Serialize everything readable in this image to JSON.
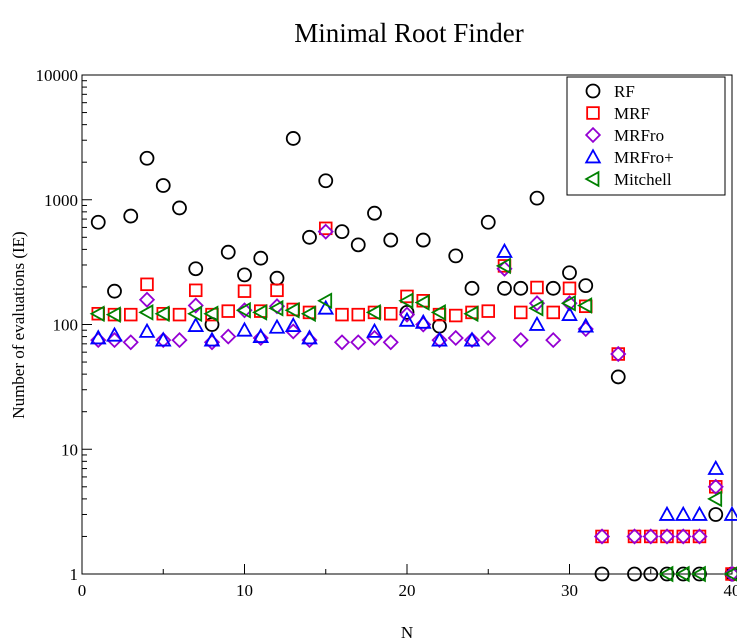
{
  "chart_data": {
    "type": "scatter",
    "title": "Minimal Root Finder",
    "xlabel": "N",
    "ylabel": "Number of evaluations (IE)",
    "xlim": [
      0,
      40
    ],
    "ylim": [
      1,
      10000
    ],
    "yscale": "log",
    "x_ticks": [
      0,
      10,
      20,
      30,
      40
    ],
    "x_tick_labels": [
      "0",
      "10",
      "20",
      "30",
      "40"
    ],
    "y_ticks": [
      1,
      10,
      100,
      1000,
      10000
    ],
    "y_tick_labels": [
      "1",
      "10",
      "100",
      "1000",
      "10000"
    ],
    "grid": false,
    "legend_position": "top-right",
    "series": [
      {
        "name": "RF",
        "marker": "circle",
        "color": "#000000",
        "points": [
          [
            1,
            660
          ],
          [
            2,
            185
          ],
          [
            3,
            740
          ],
          [
            4,
            2150
          ],
          [
            5,
            1300
          ],
          [
            6,
            860
          ],
          [
            7,
            280
          ],
          [
            8,
            100
          ],
          [
            9,
            380
          ],
          [
            10,
            250
          ],
          [
            11,
            340
          ],
          [
            12,
            235
          ],
          [
            13,
            3100
          ],
          [
            14,
            500
          ],
          [
            15,
            1420
          ],
          [
            16,
            555
          ],
          [
            17,
            435
          ],
          [
            18,
            780
          ],
          [
            19,
            475
          ],
          [
            20,
            125
          ],
          [
            21,
            475
          ],
          [
            22,
            97
          ],
          [
            23,
            355
          ],
          [
            24,
            195
          ],
          [
            25,
            660
          ],
          [
            26,
            195
          ],
          [
            27,
            195
          ],
          [
            28,
            1030
          ],
          [
            29,
            195
          ],
          [
            30,
            260
          ],
          [
            31,
            205
          ],
          [
            33,
            38
          ],
          [
            32,
            1
          ],
          [
            34,
            1
          ],
          [
            35,
            1
          ],
          [
            36,
            1
          ],
          [
            37,
            1
          ],
          [
            38,
            1
          ],
          [
            39,
            3
          ],
          [
            40,
            1
          ]
        ]
      },
      {
        "name": "MRF",
        "marker": "square",
        "color": "#ff0000",
        "points": [
          [
            1,
            122
          ],
          [
            2,
            120
          ],
          [
            3,
            120
          ],
          [
            4,
            210
          ],
          [
            5,
            122
          ],
          [
            6,
            120
          ],
          [
            7,
            188
          ],
          [
            8,
            120
          ],
          [
            9,
            128
          ],
          [
            10,
            185
          ],
          [
            11,
            128
          ],
          [
            12,
            188
          ],
          [
            13,
            132
          ],
          [
            14,
            125
          ],
          [
            15,
            590
          ],
          [
            16,
            120
          ],
          [
            17,
            120
          ],
          [
            18,
            125
          ],
          [
            19,
            122
          ],
          [
            20,
            168
          ],
          [
            21,
            155
          ],
          [
            22,
            120
          ],
          [
            23,
            118
          ],
          [
            24,
            125
          ],
          [
            25,
            128
          ],
          [
            26,
            295
          ],
          [
            27,
            125
          ],
          [
            28,
            198
          ],
          [
            29,
            125
          ],
          [
            30,
            195
          ],
          [
            31,
            140
          ],
          [
            32,
            2
          ],
          [
            33,
            58
          ],
          [
            34,
            2
          ],
          [
            35,
            2
          ],
          [
            36,
            2
          ],
          [
            37,
            2
          ],
          [
            38,
            2
          ],
          [
            39,
            5
          ],
          [
            40,
            1
          ]
        ]
      },
      {
        "name": "MRFro",
        "marker": "diamond",
        "color": "#9400d3",
        "points": [
          [
            1,
            75
          ],
          [
            2,
            75
          ],
          [
            3,
            72
          ],
          [
            4,
            158
          ],
          [
            5,
            75
          ],
          [
            6,
            75
          ],
          [
            7,
            142
          ],
          [
            8,
            72
          ],
          [
            9,
            80
          ],
          [
            10,
            130
          ],
          [
            11,
            78
          ],
          [
            12,
            140
          ],
          [
            13,
            88
          ],
          [
            14,
            75
          ],
          [
            15,
            555
          ],
          [
            16,
            72
          ],
          [
            17,
            72
          ],
          [
            18,
            78
          ],
          [
            19,
            72
          ],
          [
            20,
            120
          ],
          [
            21,
            100
          ],
          [
            22,
            75
          ],
          [
            23,
            78
          ],
          [
            24,
            75
          ],
          [
            25,
            78
          ],
          [
            26,
            280
          ],
          [
            27,
            75
          ],
          [
            28,
            148
          ],
          [
            29,
            75
          ],
          [
            30,
            148
          ],
          [
            31,
            92
          ],
          [
            32,
            2
          ],
          [
            33,
            58
          ],
          [
            34,
            2
          ],
          [
            35,
            2
          ],
          [
            36,
            2
          ],
          [
            37,
            2
          ],
          [
            38,
            2
          ],
          [
            39,
            5
          ],
          [
            40,
            1
          ]
        ]
      },
      {
        "name": "MRFro+",
        "marker": "triangle-up",
        "color": "#0000ff",
        "points": [
          [
            1,
            78
          ],
          [
            2,
            82
          ],
          [
            4,
            88
          ],
          [
            5,
            75
          ],
          [
            7,
            98
          ],
          [
            8,
            75
          ],
          [
            10,
            90
          ],
          [
            11,
            80
          ],
          [
            12,
            95
          ],
          [
            13,
            98
          ],
          [
            14,
            78
          ],
          [
            15,
            135
          ],
          [
            18,
            88
          ],
          [
            20,
            108
          ],
          [
            21,
            104
          ],
          [
            22,
            75
          ],
          [
            24,
            75
          ],
          [
            26,
            385
          ],
          [
            28,
            100
          ],
          [
            30,
            120
          ],
          [
            31,
            97
          ],
          [
            36,
            3
          ],
          [
            37,
            3
          ],
          [
            38,
            3
          ],
          [
            39,
            7
          ],
          [
            40,
            3
          ]
        ]
      },
      {
        "name": "Mitchell",
        "marker": "triangle-left",
        "color": "#008000",
        "points": [
          [
            1,
            122
          ],
          [
            2,
            120
          ],
          [
            4,
            125
          ],
          [
            5,
            122
          ],
          [
            7,
            122
          ],
          [
            8,
            122
          ],
          [
            10,
            130
          ],
          [
            11,
            125
          ],
          [
            12,
            135
          ],
          [
            13,
            130
          ],
          [
            14,
            122
          ],
          [
            15,
            155
          ],
          [
            18,
            125
          ],
          [
            20,
            155
          ],
          [
            21,
            150
          ],
          [
            22,
            125
          ],
          [
            24,
            122
          ],
          [
            26,
            295
          ],
          [
            28,
            135
          ],
          [
            30,
            148
          ],
          [
            31,
            142
          ],
          [
            36,
            1
          ],
          [
            37,
            1
          ],
          [
            38,
            1
          ],
          [
            39,
            4
          ],
          [
            40,
            1
          ]
        ]
      }
    ]
  }
}
